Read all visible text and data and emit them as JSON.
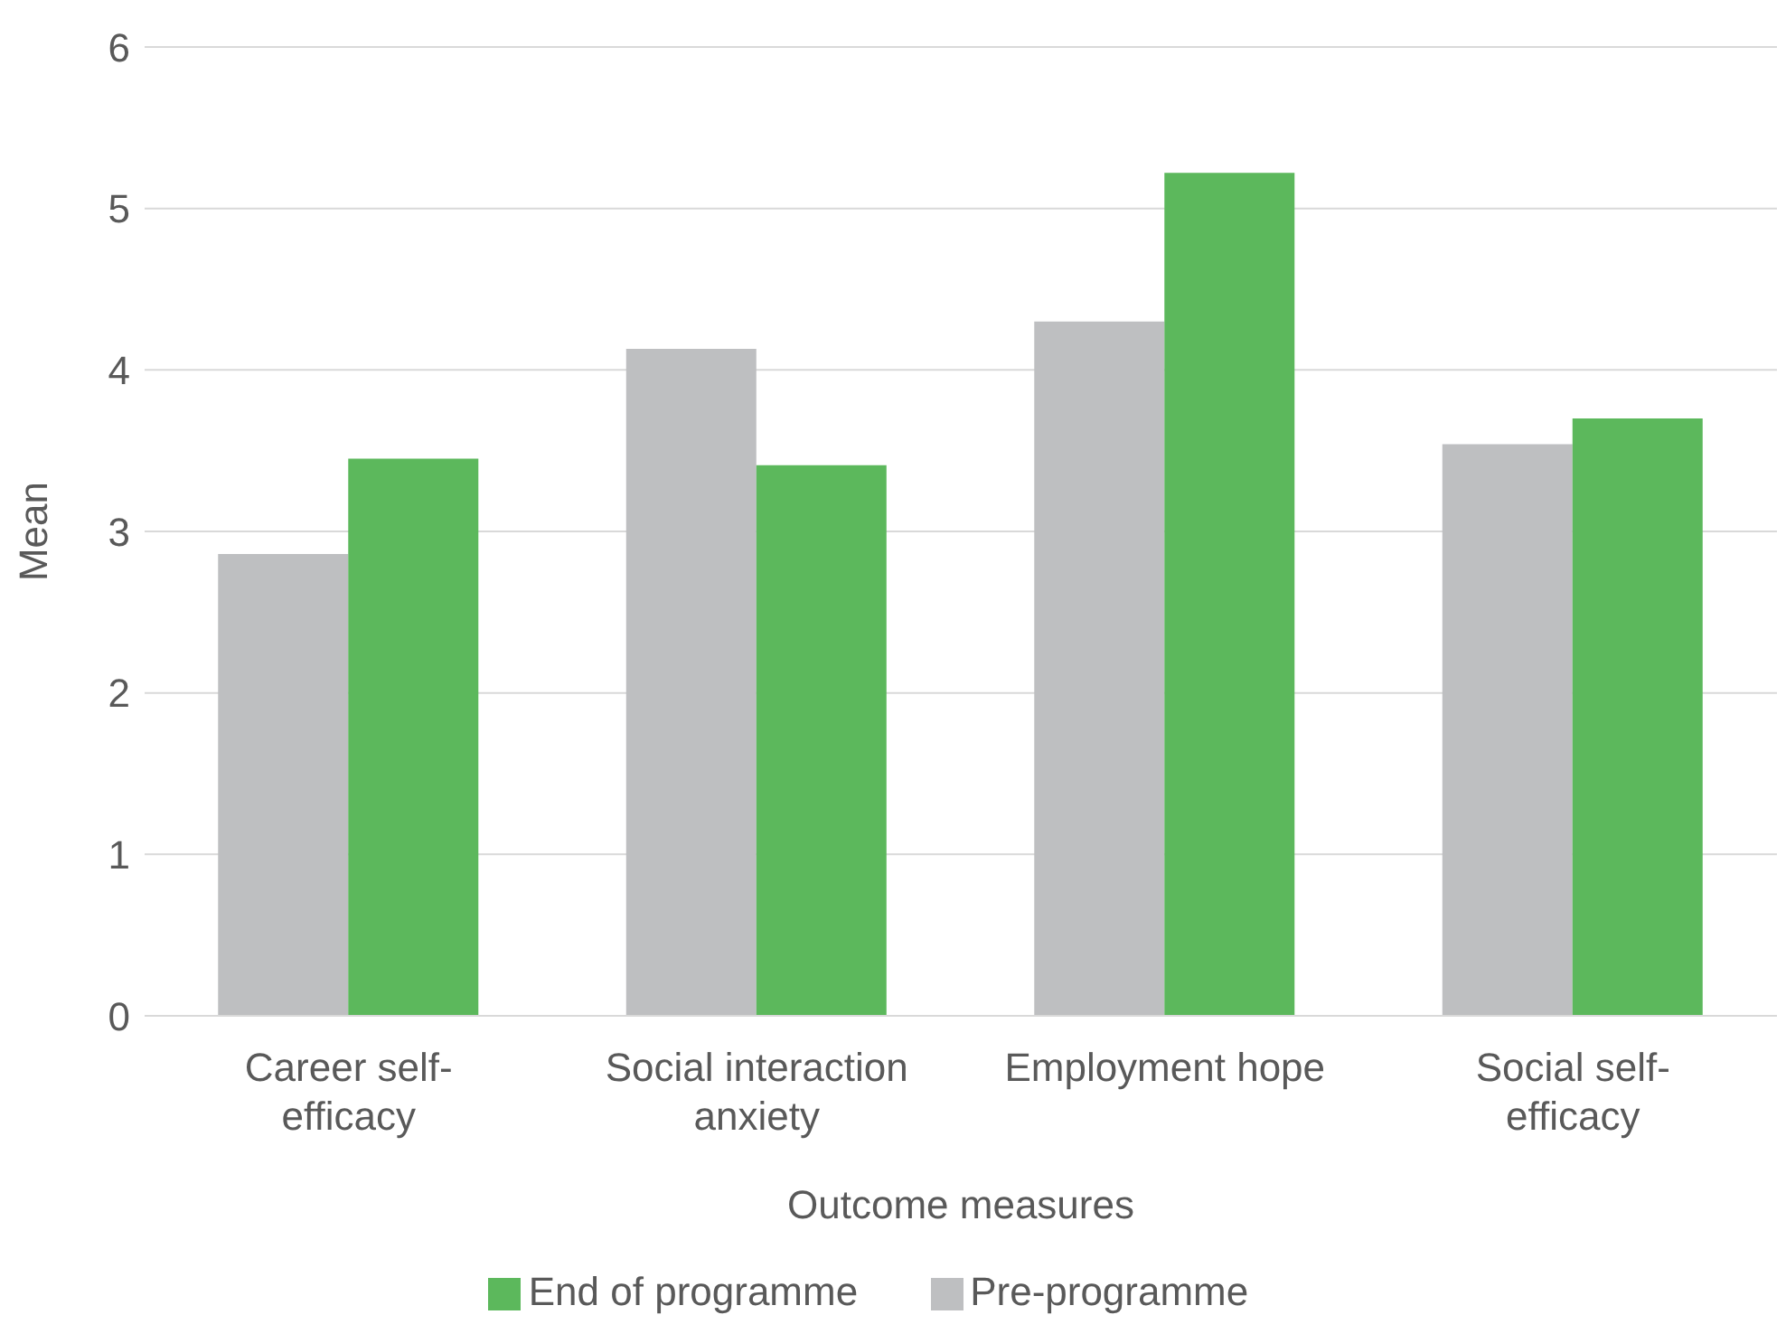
{
  "chart_data": {
    "type": "bar",
    "xlabel": "Outcome measures",
    "ylabel": "Mean",
    "categories": [
      "Career self-efficacy",
      "Social interaction anxiety",
      "Employment hope",
      "Social self-efficacy"
    ],
    "series": [
      {
        "name": "Pre-programme",
        "color": "#bebfc1",
        "values": [
          2.86,
          4.13,
          4.3,
          3.54
        ]
      },
      {
        "name": "End of programme",
        "color": "#5cb85c",
        "values": [
          3.45,
          3.41,
          5.22,
          3.7
        ]
      }
    ],
    "ylim": [
      0,
      6
    ],
    "yticks": [
      0,
      1,
      2,
      3,
      4,
      5,
      6
    ],
    "grid": "y",
    "legend": "bottom"
  }
}
